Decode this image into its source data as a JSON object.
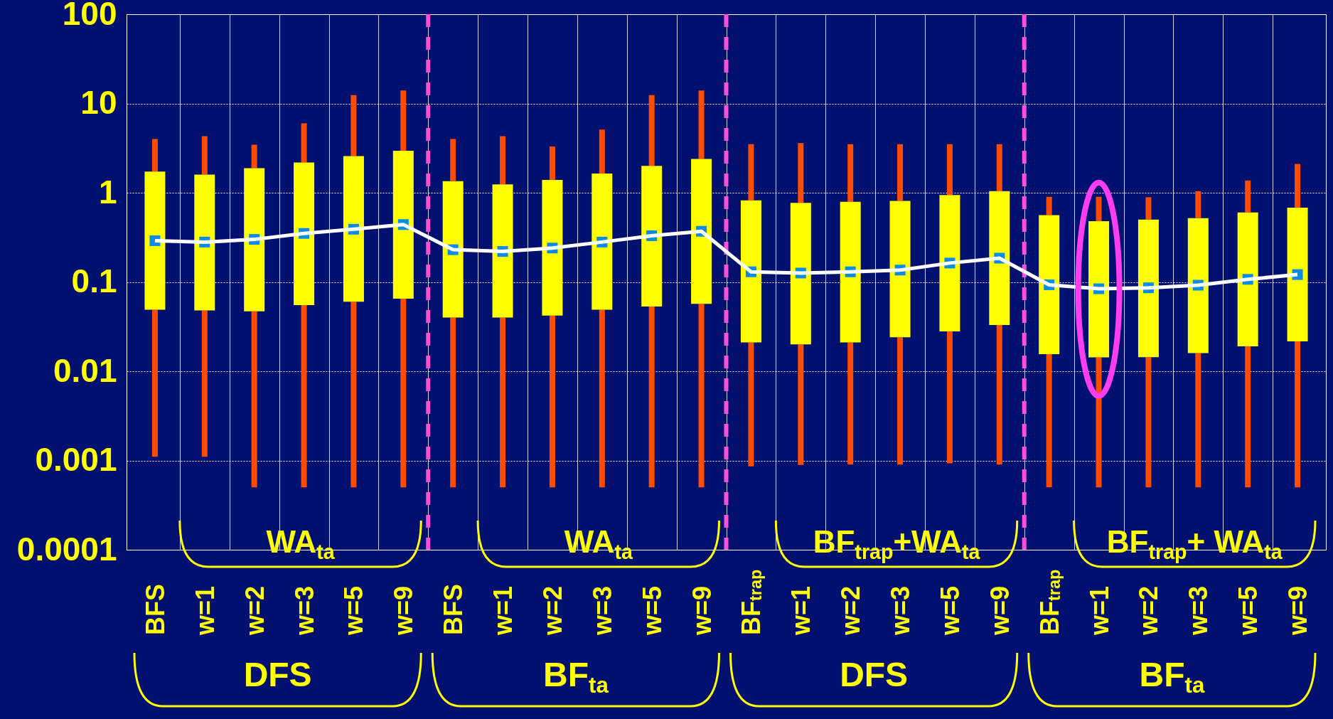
{
  "chart_data": {
    "type": "box",
    "categories": [
      "BFS",
      "w=1",
      "w=2",
      "w=3",
      "w=5",
      "w=9",
      "BFS",
      "w=1",
      "w=2",
      "w=3",
      "w=5",
      "w=9",
      "BF$_{trap}$",
      "w=1",
      "w=2",
      "w=3",
      "w=5",
      "w=9",
      "BF$_{trap}$",
      "w=1",
      "w=2",
      "w=3",
      "w=5",
      "w=9"
    ],
    "ylim": [
      0.0001,
      100
    ],
    "yticks": [
      0.0001,
      0.001,
      0.01,
      0.1,
      1,
      10,
      100
    ],
    "log": true,
    "grid": true,
    "series": [
      {
        "color": "#ffff00",
        "boxes": [
          {
            "low": 0.0011,
            "q1": 0.049,
            "median": 0.29,
            "q3": 1.73,
            "high": 4
          },
          {
            "low": 0.0011,
            "q1": 0.048,
            "median": 0.28,
            "q3": 1.6,
            "high": 4.3
          },
          {
            "low": 0.0005,
            "q1": 0.047,
            "median": 0.3,
            "q3": 1.88,
            "high": 3.45
          },
          {
            "low": 0.0005,
            "q1": 0.055,
            "median": 0.35,
            "q3": 2.18,
            "high": 6
          },
          {
            "low": 0.0005,
            "q1": 0.06,
            "median": 0.39,
            "q3": 2.57,
            "high": 12.4
          },
          {
            "low": 0.0005,
            "q1": 0.065,
            "median": 0.44,
            "q3": 2.95,
            "high": 14
          },
          {
            "low": 0.0005,
            "q1": 0.04,
            "median": 0.23,
            "q3": 1.35,
            "high": 4
          },
          {
            "low": 0.0005,
            "q1": 0.04,
            "median": 0.22,
            "q3": 1.24,
            "high": 4.3
          },
          {
            "low": 0.0005,
            "q1": 0.042,
            "median": 0.24,
            "q3": 1.39,
            "high": 3.3
          },
          {
            "low": 0.0005,
            "q1": 0.049,
            "median": 0.28,
            "q3": 1.64,
            "high": 5.1
          },
          {
            "low": 0.0005,
            "q1": 0.053,
            "median": 0.33,
            "q3": 2,
            "high": 12.4
          },
          {
            "low": 0.0005,
            "q1": 0.057,
            "median": 0.37,
            "q3": 2.39,
            "high": 14
          },
          {
            "low": 0.00086,
            "q1": 0.021,
            "median": 0.13,
            "q3": 0.82,
            "high": 3.5
          },
          {
            "low": 0.00089,
            "q1": 0.02,
            "median": 0.126,
            "q3": 0.77,
            "high": 3.6
          },
          {
            "low": 0.0009,
            "q1": 0.021,
            "median": 0.13,
            "q3": 0.79,
            "high": 3.5
          },
          {
            "low": 0.0009,
            "q1": 0.024,
            "median": 0.136,
            "q3": 0.81,
            "high": 3.5
          },
          {
            "low": 0.00093,
            "q1": 0.028,
            "median": 0.163,
            "q3": 0.94,
            "high": 3.5
          },
          {
            "low": 0.0009,
            "q1": 0.033,
            "median": 0.185,
            "q3": 1.04,
            "high": 3.5
          },
          {
            "low": 0.0005,
            "q1": 0.0155,
            "median": 0.093,
            "q3": 0.56,
            "high": 0.9
          },
          {
            "low": 0.0005,
            "q1": 0.0143,
            "median": 0.084,
            "q3": 0.48,
            "high": 0.9
          },
          {
            "low": 0.0005,
            "q1": 0.0144,
            "median": 0.086,
            "q3": 0.5,
            "high": 0.89
          },
          {
            "low": 0.0005,
            "q1": 0.016,
            "median": 0.092,
            "q3": 0.52,
            "high": 1.04
          },
          {
            "low": 0.0005,
            "q1": 0.019,
            "median": 0.107,
            "q3": 0.6,
            "high": 1.37
          },
          {
            "low": 0.0005,
            "q1": 0.0216,
            "median": 0.121,
            "q3": 0.68,
            "high": 2.1
          }
        ]
      },
      {
        "type": "line",
        "color": "#ffffff",
        "values": [
          0.29,
          0.28,
          0.3,
          0.35,
          0.39,
          0.44,
          0.23,
          0.22,
          0.24,
          0.28,
          0.33,
          0.37,
          0.13,
          0.126,
          0.13,
          0.136,
          0.163,
          0.185,
          0.093,
          0.084,
          0.086,
          0.092,
          0.107,
          0.121
        ]
      }
    ],
    "annotations": [
      "WA$_{ta}$",
      "WA$_{ta}$",
      "BF$_{trap}$+WA$_{ta}$",
      "BF$_{trap}$+ WA$_{ta}$",
      "DFS",
      "BF$_{ta}$",
      "DFS",
      "BF$_{ta}$"
    ]
  }
}
